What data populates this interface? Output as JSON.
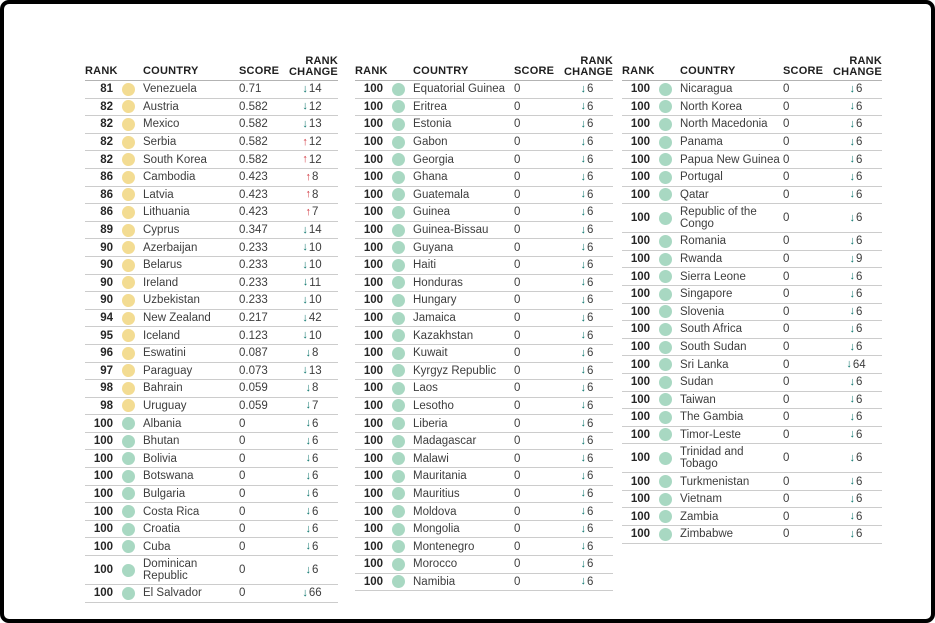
{
  "colors": {
    "yellow_dot": "#F3DC92",
    "teal_dot": "#A8D8C2",
    "up_arrow": "#D13840",
    "down_arrow": "#0B756C"
  },
  "headers": {
    "rank": "RANK",
    "country": "COUNTRY",
    "score": "SCORE",
    "change_line1": "RANK",
    "change_line2": "CHANGE"
  },
  "tables": [
    {
      "rows": [
        {
          "rank": "81",
          "country": "Venezuela",
          "score": "0.71",
          "dir": "down",
          "change": "14",
          "dot": "yellow"
        },
        {
          "rank": "82",
          "country": "Austria",
          "score": "0.582",
          "dir": "down",
          "change": "12",
          "dot": "yellow"
        },
        {
          "rank": "82",
          "country": "Mexico",
          "score": "0.582",
          "dir": "down",
          "change": "13",
          "dot": "yellow"
        },
        {
          "rank": "82",
          "country": "Serbia",
          "score": "0.582",
          "dir": "up",
          "change": "12",
          "dot": "yellow"
        },
        {
          "rank": "82",
          "country": "South Korea",
          "score": "0.582",
          "dir": "up",
          "change": "12",
          "dot": "yellow"
        },
        {
          "rank": "86",
          "country": "Cambodia",
          "score": "0.423",
          "dir": "up",
          "change": "8",
          "dot": "yellow"
        },
        {
          "rank": "86",
          "country": "Latvia",
          "score": "0.423",
          "dir": "up",
          "change": "8",
          "dot": "yellow"
        },
        {
          "rank": "86",
          "country": "Lithuania",
          "score": "0.423",
          "dir": "up",
          "change": "7",
          "dot": "yellow"
        },
        {
          "rank": "89",
          "country": "Cyprus",
          "score": "0.347",
          "dir": "down",
          "change": "14",
          "dot": "yellow"
        },
        {
          "rank": "90",
          "country": "Azerbaijan",
          "score": "0.233",
          "dir": "down",
          "change": "10",
          "dot": "yellow"
        },
        {
          "rank": "90",
          "country": "Belarus",
          "score": "0.233",
          "dir": "down",
          "change": "10",
          "dot": "yellow"
        },
        {
          "rank": "90",
          "country": "Ireland",
          "score": "0.233",
          "dir": "down",
          "change": "11",
          "dot": "yellow"
        },
        {
          "rank": "90",
          "country": "Uzbekistan",
          "score": "0.233",
          "dir": "down",
          "change": "10",
          "dot": "yellow"
        },
        {
          "rank": "94",
          "country": "New Zealand",
          "score": "0.217",
          "dir": "down",
          "change": "42",
          "dot": "yellow"
        },
        {
          "rank": "95",
          "country": "Iceland",
          "score": "0.123",
          "dir": "down",
          "change": "10",
          "dot": "yellow"
        },
        {
          "rank": "96",
          "country": "Eswatini",
          "score": "0.087",
          "dir": "down",
          "change": "8",
          "dot": "yellow"
        },
        {
          "rank": "97",
          "country": "Paraguay",
          "score": "0.073",
          "dir": "down",
          "change": "13",
          "dot": "yellow"
        },
        {
          "rank": "98",
          "country": "Bahrain",
          "score": "0.059",
          "dir": "down",
          "change": "8",
          "dot": "yellow"
        },
        {
          "rank": "98",
          "country": "Uruguay",
          "score": "0.059",
          "dir": "down",
          "change": "7",
          "dot": "yellow"
        },
        {
          "rank": "100",
          "country": "Albania",
          "score": "0",
          "dir": "down",
          "change": "6",
          "dot": "teal"
        },
        {
          "rank": "100",
          "country": "Bhutan",
          "score": "0",
          "dir": "down",
          "change": "6",
          "dot": "teal"
        },
        {
          "rank": "100",
          "country": "Bolivia",
          "score": "0",
          "dir": "down",
          "change": "6",
          "dot": "teal"
        },
        {
          "rank": "100",
          "country": "Botswana",
          "score": "0",
          "dir": "down",
          "change": "6",
          "dot": "teal"
        },
        {
          "rank": "100",
          "country": "Bulgaria",
          "score": "0",
          "dir": "down",
          "change": "6",
          "dot": "teal"
        },
        {
          "rank": "100",
          "country": "Costa Rica",
          "score": "0",
          "dir": "down",
          "change": "6",
          "dot": "teal"
        },
        {
          "rank": "100",
          "country": "Croatia",
          "score": "0",
          "dir": "down",
          "change": "6",
          "dot": "teal"
        },
        {
          "rank": "100",
          "country": "Cuba",
          "score": "0",
          "dir": "down",
          "change": "6",
          "dot": "teal"
        },
        {
          "rank": "100",
          "country": "Dominican Republic",
          "score": "0",
          "dir": "down",
          "change": "6",
          "dot": "teal"
        },
        {
          "rank": "100",
          "country": "El Salvador",
          "score": "0",
          "dir": "down",
          "change": "66",
          "dot": "teal"
        }
      ]
    },
    {
      "rows": [
        {
          "rank": "100",
          "country": "Equatorial Guinea",
          "score": "0",
          "dir": "down",
          "change": "6",
          "dot": "teal"
        },
        {
          "rank": "100",
          "country": "Eritrea",
          "score": "0",
          "dir": "down",
          "change": "6",
          "dot": "teal"
        },
        {
          "rank": "100",
          "country": "Estonia",
          "score": "0",
          "dir": "down",
          "change": "6",
          "dot": "teal"
        },
        {
          "rank": "100",
          "country": "Gabon",
          "score": "0",
          "dir": "down",
          "change": "6",
          "dot": "teal"
        },
        {
          "rank": "100",
          "country": "Georgia",
          "score": "0",
          "dir": "down",
          "change": "6",
          "dot": "teal"
        },
        {
          "rank": "100",
          "country": "Ghana",
          "score": "0",
          "dir": "down",
          "change": "6",
          "dot": "teal"
        },
        {
          "rank": "100",
          "country": "Guatemala",
          "score": "0",
          "dir": "down",
          "change": "6",
          "dot": "teal"
        },
        {
          "rank": "100",
          "country": "Guinea",
          "score": "0",
          "dir": "down",
          "change": "6",
          "dot": "teal"
        },
        {
          "rank": "100",
          "country": "Guinea-Bissau",
          "score": "0",
          "dir": "down",
          "change": "6",
          "dot": "teal"
        },
        {
          "rank": "100",
          "country": "Guyana",
          "score": "0",
          "dir": "down",
          "change": "6",
          "dot": "teal"
        },
        {
          "rank": "100",
          "country": "Haiti",
          "score": "0",
          "dir": "down",
          "change": "6",
          "dot": "teal"
        },
        {
          "rank": "100",
          "country": "Honduras",
          "score": "0",
          "dir": "down",
          "change": "6",
          "dot": "teal"
        },
        {
          "rank": "100",
          "country": "Hungary",
          "score": "0",
          "dir": "down",
          "change": "6",
          "dot": "teal"
        },
        {
          "rank": "100",
          "country": "Jamaica",
          "score": "0",
          "dir": "down",
          "change": "6",
          "dot": "teal"
        },
        {
          "rank": "100",
          "country": "Kazakhstan",
          "score": "0",
          "dir": "down",
          "change": "6",
          "dot": "teal"
        },
        {
          "rank": "100",
          "country": "Kuwait",
          "score": "0",
          "dir": "down",
          "change": "6",
          "dot": "teal"
        },
        {
          "rank": "100",
          "country": "Kyrgyz Republic",
          "score": "0",
          "dir": "down",
          "change": "6",
          "dot": "teal"
        },
        {
          "rank": "100",
          "country": "Laos",
          "score": "0",
          "dir": "down",
          "change": "6",
          "dot": "teal"
        },
        {
          "rank": "100",
          "country": "Lesotho",
          "score": "0",
          "dir": "down",
          "change": "6",
          "dot": "teal"
        },
        {
          "rank": "100",
          "country": "Liberia",
          "score": "0",
          "dir": "down",
          "change": "6",
          "dot": "teal"
        },
        {
          "rank": "100",
          "country": "Madagascar",
          "score": "0",
          "dir": "down",
          "change": "6",
          "dot": "teal"
        },
        {
          "rank": "100",
          "country": "Malawi",
          "score": "0",
          "dir": "down",
          "change": "6",
          "dot": "teal"
        },
        {
          "rank": "100",
          "country": "Mauritania",
          "score": "0",
          "dir": "down",
          "change": "6",
          "dot": "teal"
        },
        {
          "rank": "100",
          "country": "Mauritius",
          "score": "0",
          "dir": "down",
          "change": "6",
          "dot": "teal"
        },
        {
          "rank": "100",
          "country": "Moldova",
          "score": "0",
          "dir": "down",
          "change": "6",
          "dot": "teal"
        },
        {
          "rank": "100",
          "country": "Mongolia",
          "score": "0",
          "dir": "down",
          "change": "6",
          "dot": "teal"
        },
        {
          "rank": "100",
          "country": "Montenegro",
          "score": "0",
          "dir": "down",
          "change": "6",
          "dot": "teal"
        },
        {
          "rank": "100",
          "country": "Morocco",
          "score": "0",
          "dir": "down",
          "change": "6",
          "dot": "teal"
        },
        {
          "rank": "100",
          "country": "Namibia",
          "score": "0",
          "dir": "down",
          "change": "6",
          "dot": "teal"
        }
      ]
    },
    {
      "rows": [
        {
          "rank": "100",
          "country": "Nicaragua",
          "score": "0",
          "dir": "down",
          "change": "6",
          "dot": "teal"
        },
        {
          "rank": "100",
          "country": "North Korea",
          "score": "0",
          "dir": "down",
          "change": "6",
          "dot": "teal"
        },
        {
          "rank": "100",
          "country": "North Macedonia",
          "score": "0",
          "dir": "down",
          "change": "6",
          "dot": "teal"
        },
        {
          "rank": "100",
          "country": "Panama",
          "score": "0",
          "dir": "down",
          "change": "6",
          "dot": "teal"
        },
        {
          "rank": "100",
          "country": "Papua New Guinea",
          "score": "0",
          "dir": "down",
          "change": "6",
          "dot": "teal"
        },
        {
          "rank": "100",
          "country": "Portugal",
          "score": "0",
          "dir": "down",
          "change": "6",
          "dot": "teal"
        },
        {
          "rank": "100",
          "country": "Qatar",
          "score": "0",
          "dir": "down",
          "change": "6",
          "dot": "teal"
        },
        {
          "rank": "100",
          "country": "Republic of the Congo",
          "score": "0",
          "dir": "down",
          "change": "6",
          "dot": "teal",
          "two_line": true
        },
        {
          "rank": "100",
          "country": "Romania",
          "score": "0",
          "dir": "down",
          "change": "6",
          "dot": "teal"
        },
        {
          "rank": "100",
          "country": "Rwanda",
          "score": "0",
          "dir": "down",
          "change": "9",
          "dot": "teal"
        },
        {
          "rank": "100",
          "country": "Sierra Leone",
          "score": "0",
          "dir": "down",
          "change": "6",
          "dot": "teal"
        },
        {
          "rank": "100",
          "country": "Singapore",
          "score": "0",
          "dir": "down",
          "change": "6",
          "dot": "teal"
        },
        {
          "rank": "100",
          "country": "Slovenia",
          "score": "0",
          "dir": "down",
          "change": "6",
          "dot": "teal"
        },
        {
          "rank": "100",
          "country": "South Africa",
          "score": "0",
          "dir": "down",
          "change": "6",
          "dot": "teal"
        },
        {
          "rank": "100",
          "country": "South Sudan",
          "score": "0",
          "dir": "down",
          "change": "6",
          "dot": "teal"
        },
        {
          "rank": "100",
          "country": "Sri Lanka",
          "score": "0",
          "dir": "down",
          "change": "64",
          "dot": "teal"
        },
        {
          "rank": "100",
          "country": "Sudan",
          "score": "0",
          "dir": "down",
          "change": "6",
          "dot": "teal"
        },
        {
          "rank": "100",
          "country": "Taiwan",
          "score": "0",
          "dir": "down",
          "change": "6",
          "dot": "teal"
        },
        {
          "rank": "100",
          "country": "The Gambia",
          "score": "0",
          "dir": "down",
          "change": "6",
          "dot": "teal"
        },
        {
          "rank": "100",
          "country": "Timor-Leste",
          "score": "0",
          "dir": "down",
          "change": "6",
          "dot": "teal"
        },
        {
          "rank": "100",
          "country": "Trinidad and Tobago",
          "score": "0",
          "dir": "down",
          "change": "6",
          "dot": "teal"
        },
        {
          "rank": "100",
          "country": "Turkmenistan",
          "score": "0",
          "dir": "down",
          "change": "6",
          "dot": "teal"
        },
        {
          "rank": "100",
          "country": "Vietnam",
          "score": "0",
          "dir": "down",
          "change": "6",
          "dot": "teal"
        },
        {
          "rank": "100",
          "country": "Zambia",
          "score": "0",
          "dir": "down",
          "change": "6",
          "dot": "teal"
        },
        {
          "rank": "100",
          "country": "Zimbabwe",
          "score": "0",
          "dir": "down",
          "change": "6",
          "dot": "teal"
        }
      ]
    }
  ]
}
